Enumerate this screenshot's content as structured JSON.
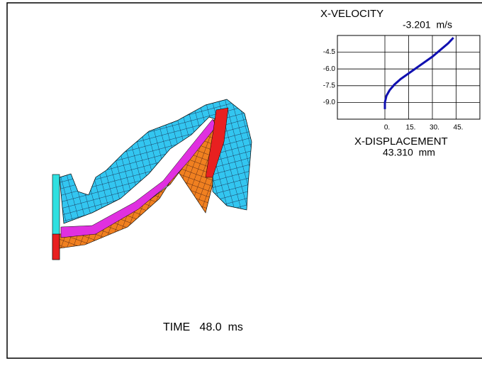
{
  "time_label": "TIME   48.0  ms",
  "chart_data": {
    "type": "line",
    "title": "X-VELOCITY",
    "current_value": "-3.201  m/s",
    "x_label": "X-DISPLACEMENT",
    "x_current": "43.310  mm",
    "x": [
      0,
      0,
      1,
      3,
      6,
      10,
      15,
      20,
      25,
      30,
      35,
      40,
      43.3
    ],
    "series": [
      {
        "color": "#1010b0",
        "values": [
          -9.6,
          -9.0,
          -8.4,
          -7.9,
          -7.4,
          -6.9,
          -6.4,
          -5.9,
          -5.4,
          -4.9,
          -4.3,
          -3.7,
          -3.2
        ]
      }
    ],
    "xlim": [
      -30,
      60
    ],
    "xticks": [
      {
        "value": 0,
        "label": "0."
      },
      {
        "value": 15,
        "label": "15."
      },
      {
        "value": 30,
        "label": "30."
      },
      {
        "value": 45,
        "label": "45."
      }
    ],
    "ylim": [
      -10.5,
      -3.0
    ],
    "yticks": [
      -4.5,
      {
        "value": -6,
        "label": "-6.0"
      },
      -7.5,
      {
        "value": -9,
        "label": "-9.0"
      }
    ],
    "grid": true
  }
}
